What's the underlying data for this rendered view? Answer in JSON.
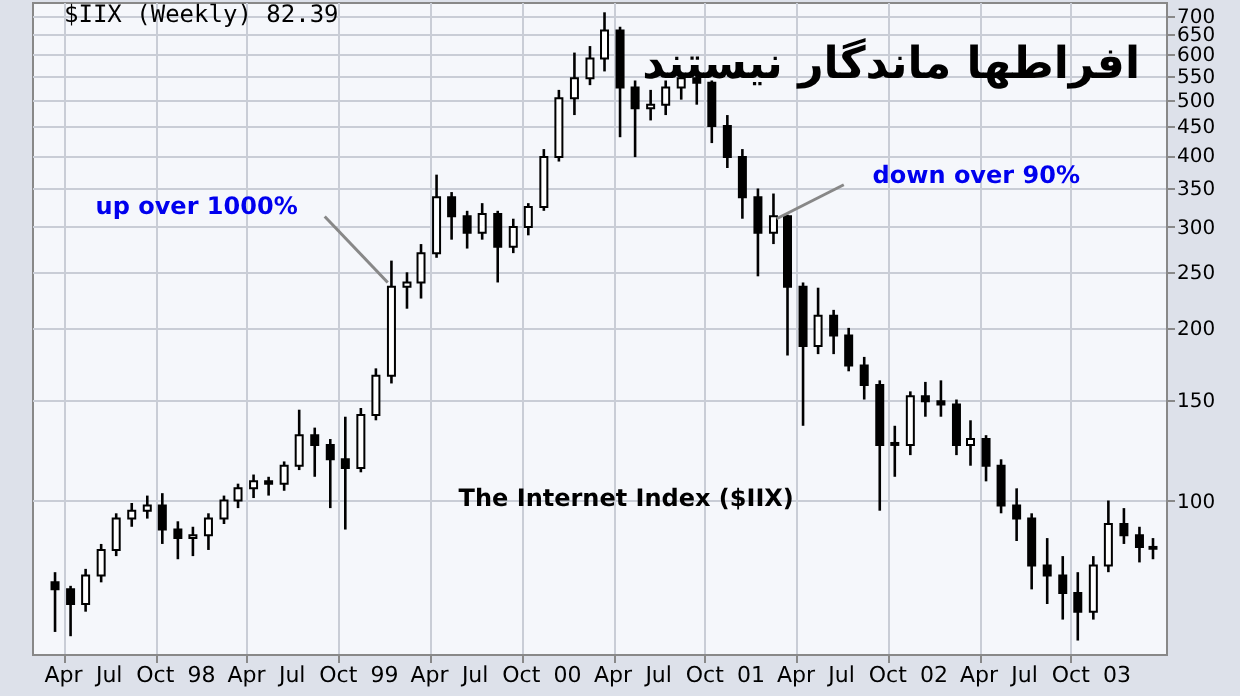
{
  "chart_data": {
    "type": "candlestick",
    "title": "افراطها ماندگار نیستند",
    "subtitle": "$IIX (Weekly) 82.39",
    "annotations": [
      {
        "text": "up over 1000%",
        "x": "1999-01-15",
        "y": 240
      },
      {
        "text": "down over 90%",
        "x": "2001-02-15",
        "y": 310
      },
      "The Internet Index ($IIX)"
    ],
    "log": "y",
    "grid": true,
    "xlim": [
      "1997-02-17",
      "2003-03-20"
    ],
    "xticks": [
      {
        "value": "1997-04-01",
        "label": "Apr"
      },
      {
        "value": "1997-07-01",
        "label": "Jul"
      },
      {
        "value": "1997-10-01",
        "label": "Oct"
      },
      {
        "value": "1998-01-01",
        "label": "98"
      },
      {
        "value": "1998-04-01",
        "label": "Apr"
      },
      {
        "value": "1998-07-01",
        "label": "Jul"
      },
      {
        "value": "1998-10-01",
        "label": "Oct"
      },
      {
        "value": "1999-01-01",
        "label": "99"
      },
      {
        "value": "1999-04-01",
        "label": "Apr"
      },
      {
        "value": "1999-07-01",
        "label": "Jul"
      },
      {
        "value": "1999-10-01",
        "label": "Oct"
      },
      {
        "value": "2000-01-01",
        "label": "00"
      },
      {
        "value": "2000-04-01",
        "label": "Apr"
      },
      {
        "value": "2000-07-01",
        "label": "Jul"
      },
      {
        "value": "2000-10-01",
        "label": "Oct"
      },
      {
        "value": "2001-01-01",
        "label": "01"
      },
      {
        "value": "2001-04-01",
        "label": "Apr"
      },
      {
        "value": "2001-07-01",
        "label": "Jul"
      },
      {
        "value": "2001-10-01",
        "label": "Oct"
      },
      {
        "value": "2002-01-01",
        "label": "02"
      },
      {
        "value": "2002-04-01",
        "label": "Apr"
      },
      {
        "value": "2002-07-01",
        "label": "Jul"
      },
      {
        "value": "2002-10-01",
        "label": "Oct"
      },
      {
        "value": "2003-01-01",
        "label": "03"
      }
    ],
    "ylim": [
      54,
      740
    ],
    "yticks": [
      100,
      150,
      200,
      250,
      300,
      350,
      400,
      450,
      500,
      550,
      600,
      650,
      700
    ],
    "series": [
      {
        "color": "#000000",
        "x": [
          "1997-03-15",
          "1997-04-15",
          "1997-05-15",
          "1997-06-15",
          "1997-07-15",
          "1997-08-15",
          "1997-09-15",
          "1997-10-15",
          "1997-11-15",
          "1997-12-15",
          "1998-01-15",
          "1998-02-15",
          "1998-03-15",
          "1998-04-15",
          "1998-05-15",
          "1998-06-15",
          "1998-07-15",
          "1998-08-15",
          "1998-09-15",
          "1998-10-15",
          "1998-11-15",
          "1998-12-15",
          "1999-01-15",
          "1999-02-15",
          "1999-03-15",
          "1999-04-15",
          "1999-05-15",
          "1999-06-15",
          "1999-07-15",
          "1999-08-15",
          "1999-09-15",
          "1999-10-15",
          "1999-11-15",
          "1999-12-15",
          "2000-01-15",
          "2000-02-15",
          "2000-03-15",
          "2000-04-15",
          "2000-05-15",
          "2000-06-15",
          "2000-07-15",
          "2000-08-15",
          "2000-09-15",
          "2000-10-15",
          "2000-11-15",
          "2000-12-15",
          "2001-01-15",
          "2001-02-15",
          "2001-03-15",
          "2001-04-15",
          "2001-05-15",
          "2001-06-15",
          "2001-07-15",
          "2001-08-15",
          "2001-09-15",
          "2001-10-15",
          "2001-11-15",
          "2001-12-15",
          "2002-01-15",
          "2002-02-15",
          "2002-03-15",
          "2002-04-15",
          "2002-05-15",
          "2002-06-15",
          "2002-07-15",
          "2002-08-15",
          "2002-09-15",
          "2002-10-15",
          "2002-11-15",
          "2002-12-15",
          "2003-01-15",
          "2003-02-15",
          "2003-03-14"
        ],
        "ohlc": [
          [
            72,
            75,
            59,
            70
          ],
          [
            70,
            71,
            58,
            66
          ],
          [
            66,
            76,
            64,
            74
          ],
          [
            74,
            84,
            72,
            82
          ],
          [
            82,
            95,
            80,
            93
          ],
          [
            93,
            99,
            90,
            96
          ],
          [
            96,
            102,
            93,
            98
          ],
          [
            98,
            103,
            84,
            89
          ],
          [
            89,
            92,
            79,
            86
          ],
          [
            86,
            90,
            80,
            87
          ],
          [
            87,
            95,
            82,
            93
          ],
          [
            93,
            102,
            91,
            100
          ],
          [
            100,
            107,
            97,
            105
          ],
          [
            105,
            111,
            101,
            108
          ],
          [
            108,
            110,
            102,
            107
          ],
          [
            107,
            117,
            104,
            115
          ],
          [
            115,
            144,
            113,
            130
          ],
          [
            130,
            134,
            110,
            125
          ],
          [
            125,
            128,
            97,
            118
          ],
          [
            118,
            140,
            89,
            114
          ],
          [
            114,
            145,
            112,
            141
          ],
          [
            141,
            170,
            138,
            165
          ],
          [
            165,
            262,
            160,
            236
          ],
          [
            236,
            250,
            216,
            240
          ],
          [
            240,
            280,
            225,
            270
          ],
          [
            270,
            370,
            265,
            338
          ],
          [
            338,
            345,
            285,
            313
          ],
          [
            313,
            320,
            275,
            293
          ],
          [
            293,
            330,
            285,
            316
          ],
          [
            316,
            320,
            240,
            277
          ],
          [
            277,
            310,
            270,
            300
          ],
          [
            300,
            330,
            290,
            325
          ],
          [
            325,
            410,
            320,
            397
          ],
          [
            397,
            520,
            390,
            503
          ],
          [
            503,
            604,
            470,
            545
          ],
          [
            545,
            620,
            530,
            590
          ],
          [
            590,
            710,
            560,
            660
          ],
          [
            660,
            670,
            430,
            525
          ],
          [
            525,
            540,
            397,
            483
          ],
          [
            483,
            520,
            460,
            490
          ],
          [
            490,
            540,
            470,
            525
          ],
          [
            525,
            555,
            500,
            545
          ],
          [
            545,
            560,
            490,
            535
          ],
          [
            535,
            540,
            420,
            450
          ],
          [
            450,
            470,
            380,
            397
          ],
          [
            397,
            410,
            310,
            338
          ],
          [
            338,
            350,
            246,
            293
          ],
          [
            293,
            343,
            280,
            313
          ],
          [
            313,
            315,
            179,
            236
          ],
          [
            236,
            240,
            135,
            186
          ],
          [
            186,
            235,
            180,
            210
          ],
          [
            210,
            215,
            180,
            194
          ],
          [
            194,
            200,
            168,
            172
          ],
          [
            172,
            178,
            150,
            159
          ],
          [
            159,
            162,
            96,
            125
          ],
          [
            125,
            135,
            110,
            126
          ],
          [
            125,
            155,
            120,
            152
          ],
          [
            152,
            161,
            140,
            149
          ],
          [
            149,
            162,
            140,
            147
          ],
          [
            147,
            150,
            120,
            125
          ],
          [
            125,
            138,
            115,
            128
          ],
          [
            128,
            130,
            108,
            115
          ],
          [
            115,
            118,
            95,
            98
          ],
          [
            98,
            105,
            85,
            93
          ],
          [
            93,
            95,
            70,
            77
          ],
          [
            77,
            86,
            66,
            74
          ],
          [
            74,
            80,
            62,
            69
          ],
          [
            69,
            75,
            57,
            64
          ],
          [
            64,
            80,
            62,
            77
          ],
          [
            77,
            100,
            75,
            91
          ],
          [
            91,
            97,
            84,
            87
          ],
          [
            87,
            90,
            78,
            83
          ],
          [
            83,
            86,
            79,
            82.39
          ]
        ]
      }
    ]
  }
}
